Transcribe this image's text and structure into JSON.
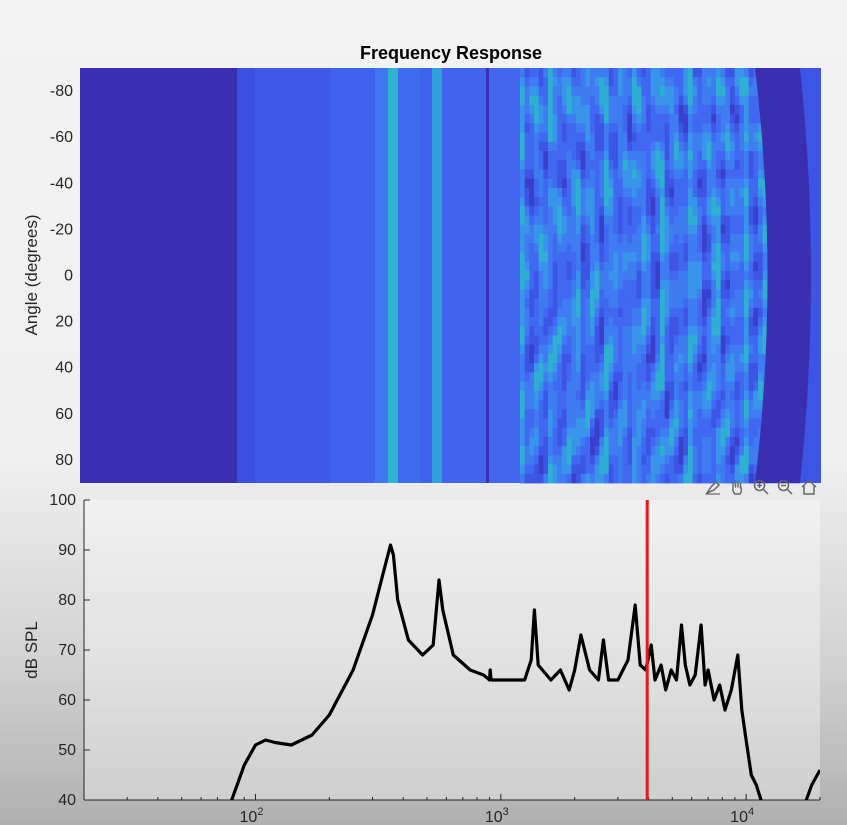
{
  "chart_data": [
    {
      "type": "heatmap",
      "title": "Frequency Response",
      "ylabel": "Angle (degrees)",
      "xlabel": "",
      "yticks": [
        "-80",
        "-60",
        "-40",
        "-20",
        "0",
        "20",
        "40",
        "60",
        "80"
      ],
      "ylim": [
        -90,
        90
      ],
      "xscale": "log",
      "xlim": [
        20,
        20000
      ],
      "colormap": "parula",
      "colors": {
        "dark": "#3a2fb0",
        "mid": "#4060ee",
        "bright": "#3d8cf0",
        "cyan": "#2fb3cf"
      }
    },
    {
      "type": "line",
      "title": "",
      "xlabel": "",
      "ylabel": "dB SPL",
      "xscale": "log",
      "xlim": [
        20,
        20000
      ],
      "ylim": [
        40,
        100
      ],
      "yticks": [
        "40",
        "50",
        "60",
        "70",
        "80",
        "90",
        "100"
      ],
      "xticks": [
        {
          "base": "10",
          "exp": "2",
          "value": 100
        },
        {
          "base": "10",
          "exp": "3",
          "value": 1000
        },
        {
          "base": "10",
          "exp": "4",
          "value": 10000
        }
      ],
      "series": [
        {
          "color": "#000000",
          "x": [
            80,
            90,
            100,
            110,
            120,
            140,
            170,
            200,
            250,
            300,
            330,
            355,
            365,
            380,
            420,
            480,
            530,
            560,
            580,
            640,
            750,
            850,
            900,
            905,
            910,
            920,
            1000,
            1100,
            1250,
            1330,
            1370,
            1420,
            1600,
            1750,
            1900,
            2000,
            2120,
            2300,
            2500,
            2620,
            2750,
            3000,
            3300,
            3530,
            3700,
            3900,
            4100,
            4250,
            4500,
            4700,
            4950,
            5200,
            5450,
            5650,
            5900,
            6200,
            6550,
            6800,
            7000,
            7400,
            7800,
            8200,
            8700,
            9250,
            9600,
            10000,
            10500,
            11000,
            11500,
            12000,
            12600,
            17000,
            18500,
            20000
          ],
          "y": [
            40,
            47,
            51,
            52,
            51.5,
            51,
            53,
            57,
            66,
            77,
            85,
            91,
            89,
            80,
            72,
            69,
            71,
            84,
            78,
            69,
            66,
            65,
            64,
            66,
            64.5,
            64,
            64,
            64,
            64,
            68,
            78,
            67,
            64,
            66,
            62,
            66,
            73,
            66,
            64,
            72,
            64,
            64,
            68,
            79,
            67,
            66,
            71,
            64,
            67,
            62,
            66,
            64,
            75,
            67,
            63,
            65,
            75,
            63,
            66,
            60,
            63,
            58,
            62,
            69,
            58,
            52,
            45,
            43,
            40,
            39,
            38,
            38,
            43,
            46
          ]
        },
        {
          "color": "#e31a1c",
          "x": [
            3950,
            3950
          ],
          "y": [
            40,
            100
          ]
        }
      ]
    }
  ],
  "toolbar": {
    "icons": [
      "data-tip-icon",
      "pan-icon",
      "zoom-in-icon",
      "zoom-out-icon",
      "home-icon"
    ]
  }
}
